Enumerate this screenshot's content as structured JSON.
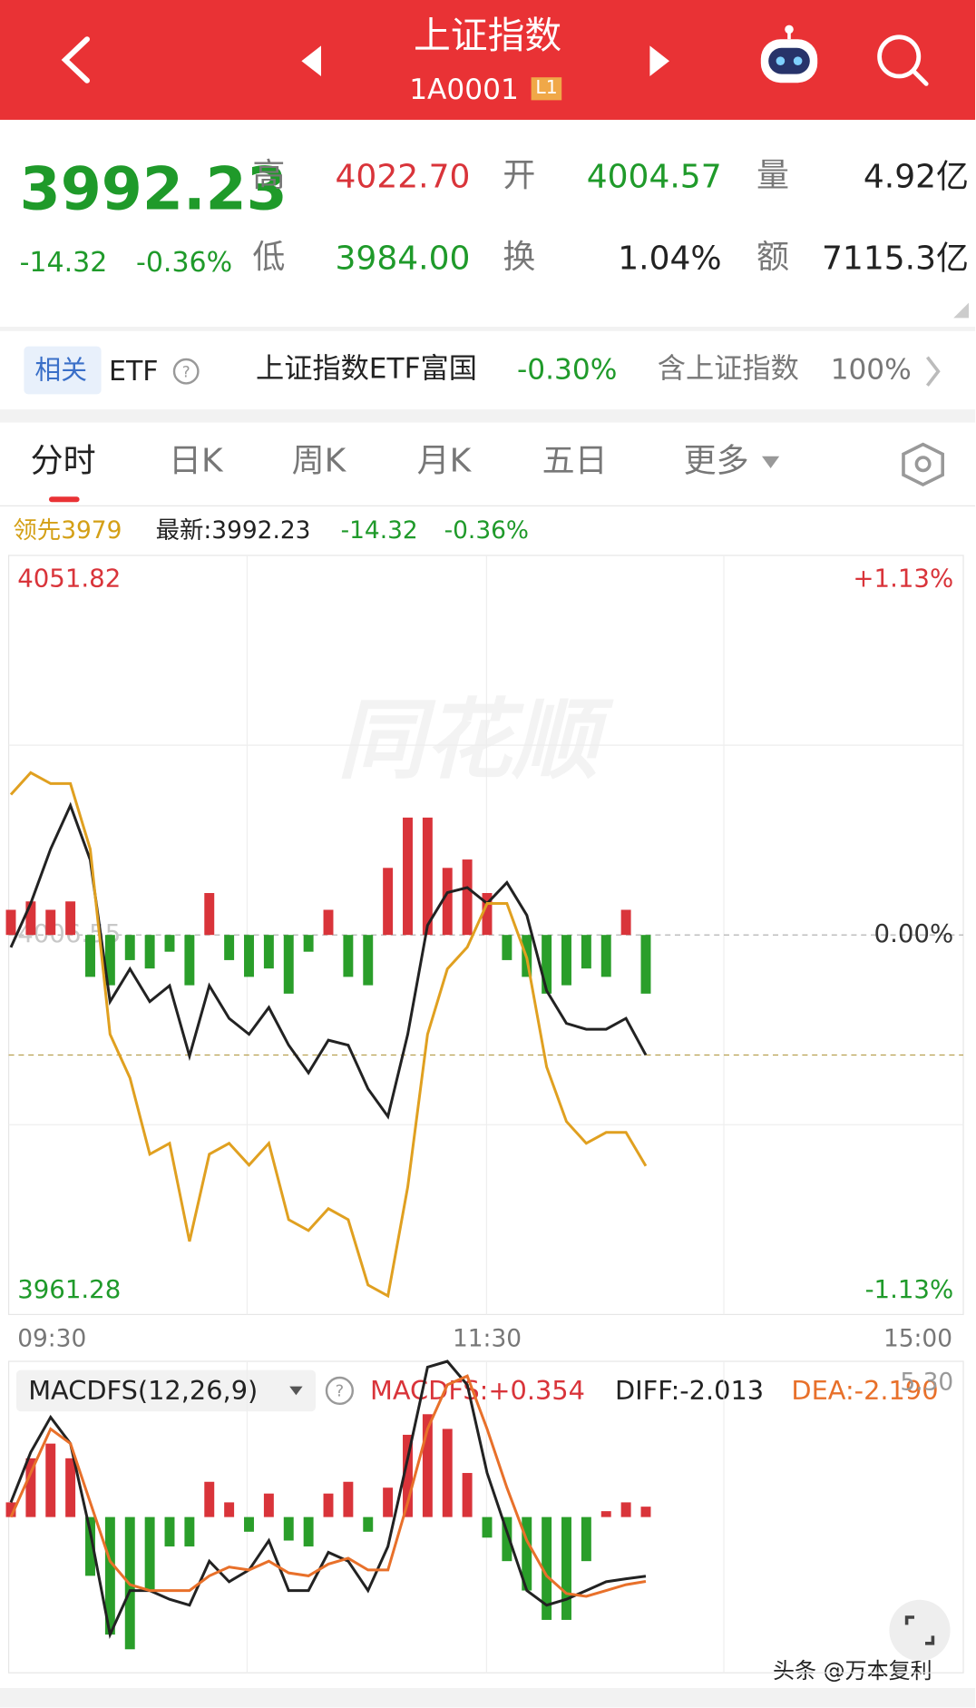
{
  "header": {
    "title": "上证指数",
    "code": "1A0001",
    "level": "L1"
  },
  "quote": {
    "price": "3992.23",
    "change": "-14.32",
    "change_pct": "-0.36%",
    "stats": [
      {
        "label": "高",
        "value": "4022.70"
      },
      {
        "label": "开",
        "value": "4004.57"
      },
      {
        "label": "量",
        "value": "4.92亿"
      },
      {
        "label": "低",
        "value": "3984.00"
      },
      {
        "label": "换",
        "value": "1.04%"
      },
      {
        "label": "额",
        "value": "7115.3亿"
      }
    ]
  },
  "related": {
    "tag": "相关",
    "type": "ETF",
    "name": "上证指数ETF富国",
    "change": "-0.30%",
    "holding_label": "含上证指数",
    "holding": "100%"
  },
  "tabs": [
    "分时",
    "日K",
    "周K",
    "月K",
    "五日",
    "更多"
  ],
  "info": {
    "lead": "领先3979",
    "latest": "最新:3992.23",
    "change": "-14.32",
    "change_pct": "-0.36%"
  },
  "watermark": "同花顺",
  "chart_data": [
    {
      "type": "line",
      "x": [
        0,
        5,
        10,
        15,
        20,
        25,
        30,
        35,
        40,
        45,
        50,
        55,
        60,
        65,
        70,
        75,
        80,
        85,
        90,
        95,
        100,
        105,
        110,
        115,
        120,
        125,
        130,
        135,
        140,
        145,
        150,
        155,
        160
      ],
      "xlim": [
        0,
        240
      ],
      "xticks": [
        {
          "value": 0,
          "label": "09:30"
        },
        {
          "value": 120,
          "label": "11:30"
        },
        {
          "value": 240,
          "label": "15:00"
        }
      ],
      "ylim": [
        3961.28,
        4051.82
      ],
      "yticks": [
        4051.82,
        4006.55,
        3961.28
      ],
      "y2lim": [
        -1.13,
        1.13
      ],
      "y2ticks": [
        {
          "value": 1.13,
          "label": "+1.13%"
        },
        {
          "value": 0,
          "label": "0.00%"
        },
        {
          "value": -1.13,
          "label": "-1.13%"
        }
      ],
      "series": [
        {
          "color": "#222222",
          "values": [
            4005.07,
            4010.3,
            4016.8,
            4022.0,
            4015.5,
            3998.6,
            4002.5,
            3998.6,
            4000.5,
            3992.1,
            4000.5,
            3996.6,
            3994.7,
            3997.9,
            3993.4,
            3990.1,
            3994.0,
            3993.4,
            3988.2,
            3984.9,
            3994.7,
            4007.7,
            4011.6,
            4012.2,
            4010.3,
            4012.8,
            4008.9,
            3999.9,
            3996.0,
            3995.3,
            3995.3,
            3996.6,
            3992.23
          ]
        },
        {
          "color": "#e0a020",
          "values": [
            4023.3,
            4025.9,
            4024.6,
            4024.6,
            4016.8,
            3994.7,
            3989.5,
            3980.4,
            3981.7,
            3970.0,
            3980.4,
            3981.7,
            3979.1,
            3981.7,
            3972.6,
            3971.3,
            3973.9,
            3972.6,
            3964.8,
            3963.5,
            3976.5,
            3994.7,
            4002.5,
            4005.1,
            4010.3,
            4010.3,
            4003.8,
            3990.8,
            3984.3,
            3981.7,
            3983.0,
            3983.0,
            3979
          ]
        }
      ],
      "bar_values": [
        3,
        4,
        3,
        4,
        -5,
        -6,
        -3,
        -4,
        -2,
        -6,
        5,
        -3,
        -5,
        -4,
        -7,
        -2,
        3,
        -5,
        -6,
        8,
        14,
        14,
        8,
        9,
        5,
        -3,
        -5,
        -7,
        -6,
        -4,
        -5,
        3,
        -7
      ],
      "up_color": "#d9343a",
      "down_color": "#2a9e2a"
    },
    {
      "type": "macd",
      "title": "MACDFS(12,26,9)",
      "labels": {
        "macd": "MACDFS:+0.354",
        "diff": "DIFF:-2.013",
        "dea": "DEA:-2.190"
      },
      "x": [
        0,
        5,
        10,
        15,
        20,
        25,
        30,
        35,
        40,
        45,
        50,
        55,
        60,
        65,
        70,
        75,
        80,
        85,
        90,
        95,
        100,
        105,
        110,
        115,
        120,
        125,
        130,
        135,
        140,
        145,
        150,
        155,
        160
      ],
      "xlim": [
        0,
        240
      ],
      "ylim": [
        -5.3,
        5.3
      ],
      "yticks": [
        {
          "value": 5.3,
          "label": "5.30"
        }
      ],
      "series": [
        {
          "color": "#222222",
          "values": [
            0.5,
            2.2,
            3.4,
            2.5,
            -0.5,
            -4,
            -2.5,
            -2.5,
            -2.8,
            -3,
            -1.5,
            -2.2,
            -1.8,
            -0.8,
            -2.5,
            -2.5,
            -1.2,
            -1.5,
            -2.5,
            -1,
            2,
            5.1,
            5.3,
            4.5,
            1.5,
            -0.5,
            -2.5,
            -3,
            -2.8,
            -2.5,
            -2.2,
            -2.1,
            -2.013
          ]
        },
        {
          "color": "#e8702a",
          "values": [
            0,
            1.5,
            3,
            2.5,
            0.5,
            -1.5,
            -2.3,
            -2.5,
            -2.5,
            -2.5,
            -2,
            -1.7,
            -1.8,
            -1.5,
            -1.9,
            -2,
            -1.6,
            -1.4,
            -1.8,
            -1.8,
            0.5,
            3,
            4.5,
            4.8,
            3,
            1,
            -0.8,
            -2,
            -2.6,
            -2.7,
            -2.5,
            -2.3,
            -2.19
          ]
        }
      ],
      "bar_values": [
        0.5,
        2,
        2.5,
        2,
        -2,
        -4,
        -4.5,
        -2.5,
        -1,
        -1,
        1.2,
        0.5,
        -0.5,
        0.8,
        -0.8,
        -1,
        0.8,
        1.2,
        -0.5,
        1,
        2.8,
        3.5,
        3,
        1.5,
        -0.7,
        -1.5,
        -2.5,
        -3.5,
        -3.5,
        -1.5,
        0.2,
        0.5,
        0.354
      ],
      "up_color": "#d9343a",
      "down_color": "#2a9e2a"
    }
  ],
  "footer": "头条 @万本复利"
}
